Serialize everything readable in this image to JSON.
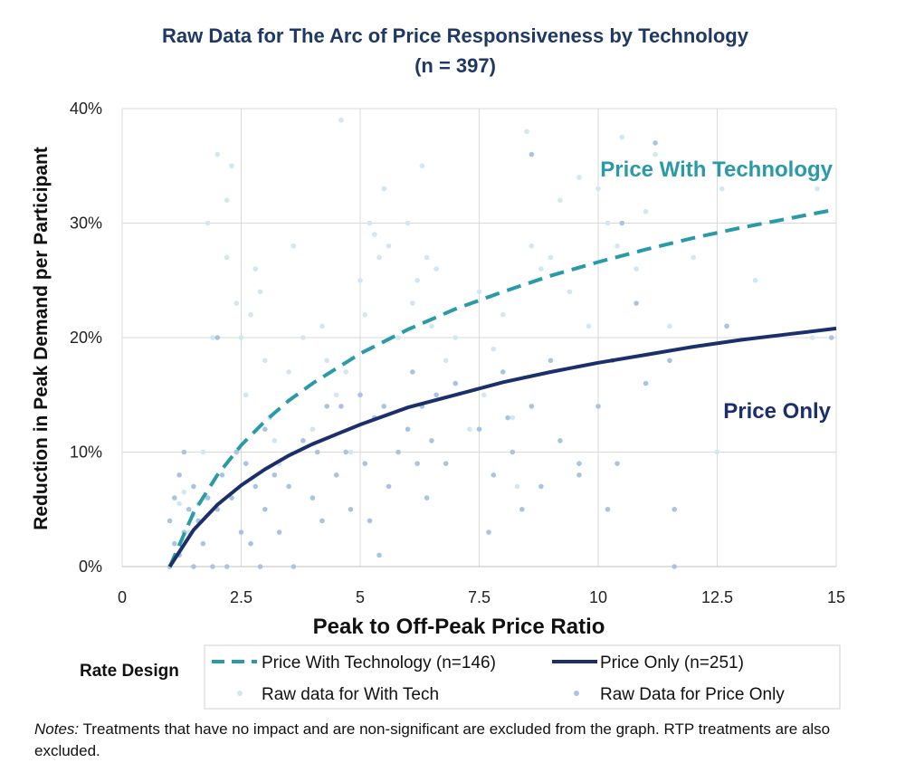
{
  "chart_data": {
    "type": "scatter",
    "title": "Raw Data for The Arc of Price Responsiveness by Technology",
    "subtitle": "(n = 397)",
    "xlabel": "Peak to Off-Peak Price Ratio",
    "ylabel": "Reduction in Peak Demand per Participant",
    "xlim": [
      0,
      15
    ],
    "ylim": [
      0,
      0.4
    ],
    "xticks": [
      0,
      2.5,
      5,
      7.5,
      10,
      12.5,
      15
    ],
    "xtick_labels": [
      "0",
      "2.5",
      "5",
      "7.5",
      "10",
      "12.5",
      "15"
    ],
    "yticks": [
      0,
      0.1,
      0.2,
      0.3,
      0.4
    ],
    "ytick_labels": [
      "0%",
      "10%",
      "20%",
      "30%",
      "40%"
    ],
    "grid": true,
    "legend_title": "Rate Design",
    "legend_position": "bottom",
    "annotations": [
      {
        "text": "Price With Technology",
        "color": "#2a9aa8"
      },
      {
        "text": "Price Only",
        "color": "#1b2f6b"
      }
    ],
    "series": [
      {
        "name": "Price With Technology (n=146)",
        "kind": "fit",
        "style": "dashed",
        "color": "#2a9aa8",
        "x": [
          1,
          1.5,
          2,
          2.5,
          3,
          3.5,
          4,
          5,
          6,
          7,
          8,
          9,
          10,
          11,
          12,
          13,
          14,
          15
        ],
        "y": [
          0,
          0.047,
          0.08,
          0.106,
          0.127,
          0.145,
          0.16,
          0.186,
          0.207,
          0.225,
          0.24,
          0.254,
          0.266,
          0.277,
          0.287,
          0.296,
          0.304,
          0.312
        ]
      },
      {
        "name": "Price Only (n=251)",
        "kind": "fit",
        "style": "solid",
        "color": "#1b2f6b",
        "x": [
          1,
          1.5,
          2,
          2.5,
          3,
          3.5,
          4,
          5,
          6,
          7,
          8,
          9,
          10,
          11,
          12,
          13,
          14,
          15
        ],
        "y": [
          0,
          0.032,
          0.054,
          0.071,
          0.085,
          0.097,
          0.107,
          0.124,
          0.139,
          0.15,
          0.161,
          0.17,
          0.178,
          0.185,
          0.192,
          0.198,
          0.203,
          0.208
        ]
      },
      {
        "name": "Raw data for With Tech",
        "kind": "points",
        "color": "#cfe8f3",
        "points": [
          [
            1.2,
            0.055
          ],
          [
            1.3,
            0.065
          ],
          [
            1.4,
            0.03
          ],
          [
            1.5,
            0.045
          ],
          [
            1.6,
            0.055
          ],
          [
            1.7,
            0.1
          ],
          [
            1.8,
            0.3
          ],
          [
            1.9,
            0.2
          ],
          [
            2.0,
            0.36
          ],
          [
            2.2,
            0.32
          ],
          [
            2.2,
            0.27
          ],
          [
            2.3,
            0.35
          ],
          [
            2.4,
            0.23
          ],
          [
            2.5,
            0.2
          ],
          [
            2.6,
            0.15
          ],
          [
            2.7,
            0.22
          ],
          [
            2.8,
            0.26
          ],
          [
            2.9,
            0.24
          ],
          [
            3.0,
            0.18
          ],
          [
            3.1,
            0.13
          ],
          [
            3.2,
            0.11
          ],
          [
            3.3,
            0.09
          ],
          [
            3.5,
            0.17
          ],
          [
            3.6,
            0.28
          ],
          [
            3.8,
            0.2
          ],
          [
            4.0,
            0.12
          ],
          [
            4.2,
            0.21
          ],
          [
            4.3,
            0.18
          ],
          [
            4.5,
            0.15
          ],
          [
            4.6,
            0.39
          ],
          [
            4.7,
            0.17
          ],
          [
            4.8,
            0.1
          ],
          [
            5.0,
            0.25
          ],
          [
            5.1,
            0.22
          ],
          [
            5.2,
            0.3
          ],
          [
            5.3,
            0.29
          ],
          [
            5.4,
            0.27
          ],
          [
            5.5,
            0.33
          ],
          [
            5.6,
            0.28
          ],
          [
            5.8,
            0.2
          ],
          [
            6.0,
            0.3
          ],
          [
            6.1,
            0.23
          ],
          [
            6.2,
            0.25
          ],
          [
            6.3,
            0.35
          ],
          [
            6.4,
            0.27
          ],
          [
            6.5,
            0.21
          ],
          [
            6.6,
            0.26
          ],
          [
            6.8,
            0.18
          ],
          [
            7.0,
            0.2
          ],
          [
            7.3,
            0.12
          ],
          [
            7.5,
            0.24
          ],
          [
            7.6,
            0.15
          ],
          [
            7.8,
            0.19
          ],
          [
            8.0,
            0.22
          ],
          [
            8.2,
            0.13
          ],
          [
            8.3,
            0.07
          ],
          [
            8.5,
            0.38
          ],
          [
            8.6,
            0.28
          ],
          [
            8.8,
            0.26
          ],
          [
            9.0,
            0.27
          ],
          [
            9.2,
            0.32
          ],
          [
            9.4,
            0.24
          ],
          [
            9.6,
            0.34
          ],
          [
            9.8,
            0.21
          ],
          [
            10.0,
            0.33
          ],
          [
            10.2,
            0.3
          ],
          [
            10.4,
            0.28
          ],
          [
            10.5,
            0.375
          ],
          [
            10.8,
            0.26
          ],
          [
            11.0,
            0.31
          ],
          [
            11.2,
            0.36
          ],
          [
            11.5,
            0.21
          ],
          [
            12.0,
            0.27
          ],
          [
            12.5,
            0.1
          ],
          [
            12.6,
            0.33
          ],
          [
            13.3,
            0.25
          ],
          [
            14.5,
            0.2
          ],
          [
            14.6,
            0.33
          ]
        ]
      },
      {
        "name": "Raw Data for Price Only",
        "kind": "points",
        "color": "#a8c4e3",
        "points": [
          [
            1.0,
            0.0
          ],
          [
            1.0,
            0.04
          ],
          [
            1.1,
            0.02
          ],
          [
            1.1,
            0.06
          ],
          [
            1.2,
            0.08
          ],
          [
            1.2,
            0.01
          ],
          [
            1.3,
            0.1
          ],
          [
            1.3,
            0.03
          ],
          [
            1.4,
            0.05
          ],
          [
            1.5,
            0.0
          ],
          [
            1.5,
            0.07
          ],
          [
            1.6,
            0.04
          ],
          [
            1.7,
            0.02
          ],
          [
            1.8,
            0.06
          ],
          [
            1.9,
            0.0
          ],
          [
            2.0,
            0.2
          ],
          [
            2.0,
            0.05
          ],
          [
            2.1,
            0.08
          ],
          [
            2.2,
            0.0
          ],
          [
            2.3,
            0.06
          ],
          [
            2.4,
            0.1
          ],
          [
            2.5,
            0.03
          ],
          [
            2.6,
            0.09
          ],
          [
            2.7,
            0.02
          ],
          [
            2.8,
            0.07
          ],
          [
            2.9,
            0.0
          ],
          [
            3.0,
            0.05
          ],
          [
            3.0,
            0.12
          ],
          [
            3.2,
            0.08
          ],
          [
            3.3,
            0.03
          ],
          [
            3.5,
            0.07
          ],
          [
            3.6,
            0.0
          ],
          [
            3.8,
            0.11
          ],
          [
            4.0,
            0.06
          ],
          [
            4.1,
            0.1
          ],
          [
            4.2,
            0.04
          ],
          [
            4.3,
            0.14
          ],
          [
            4.5,
            0.08
          ],
          [
            4.6,
            0.14
          ],
          [
            4.7,
            0.1
          ],
          [
            4.8,
            0.05
          ],
          [
            5.0,
            0.15
          ],
          [
            5.1,
            0.09
          ],
          [
            5.2,
            0.04
          ],
          [
            5.3,
            0.13
          ],
          [
            5.4,
            0.01
          ],
          [
            5.5,
            0.14
          ],
          [
            5.6,
            0.07
          ],
          [
            5.8,
            0.1
          ],
          [
            6.0,
            0.12
          ],
          [
            6.1,
            0.17
          ],
          [
            6.2,
            0.09
          ],
          [
            6.3,
            0.14
          ],
          [
            6.4,
            0.06
          ],
          [
            6.5,
            0.11
          ],
          [
            6.6,
            0.15
          ],
          [
            6.8,
            0.09
          ],
          [
            7.0,
            0.16
          ],
          [
            7.5,
            0.12
          ],
          [
            7.7,
            0.03
          ],
          [
            7.8,
            0.08
          ],
          [
            8.0,
            0.17
          ],
          [
            8.1,
            0.13
          ],
          [
            8.2,
            0.1
          ],
          [
            8.4,
            0.05
          ],
          [
            8.6,
            0.36
          ],
          [
            8.6,
            0.14
          ],
          [
            8.8,
            0.07
          ],
          [
            9.0,
            0.18
          ],
          [
            9.2,
            0.11
          ],
          [
            9.6,
            0.08
          ],
          [
            9.6,
            0.09
          ],
          [
            10.0,
            0.14
          ],
          [
            10.2,
            0.05
          ],
          [
            10.3,
            0.18
          ],
          [
            10.4,
            0.09
          ],
          [
            10.5,
            0.3
          ],
          [
            10.8,
            0.23
          ],
          [
            11.0,
            0.16
          ],
          [
            11.2,
            0.37
          ],
          [
            11.5,
            0.18
          ],
          [
            11.6,
            0.05
          ],
          [
            11.6,
            0.0
          ],
          [
            12.7,
            0.21
          ],
          [
            14.9,
            0.2
          ]
        ]
      }
    ]
  },
  "notes": {
    "label": "Notes:",
    "text": " Treatments that have no impact and are non-significant are excluded from the graph. RTP treatments are also excluded."
  }
}
